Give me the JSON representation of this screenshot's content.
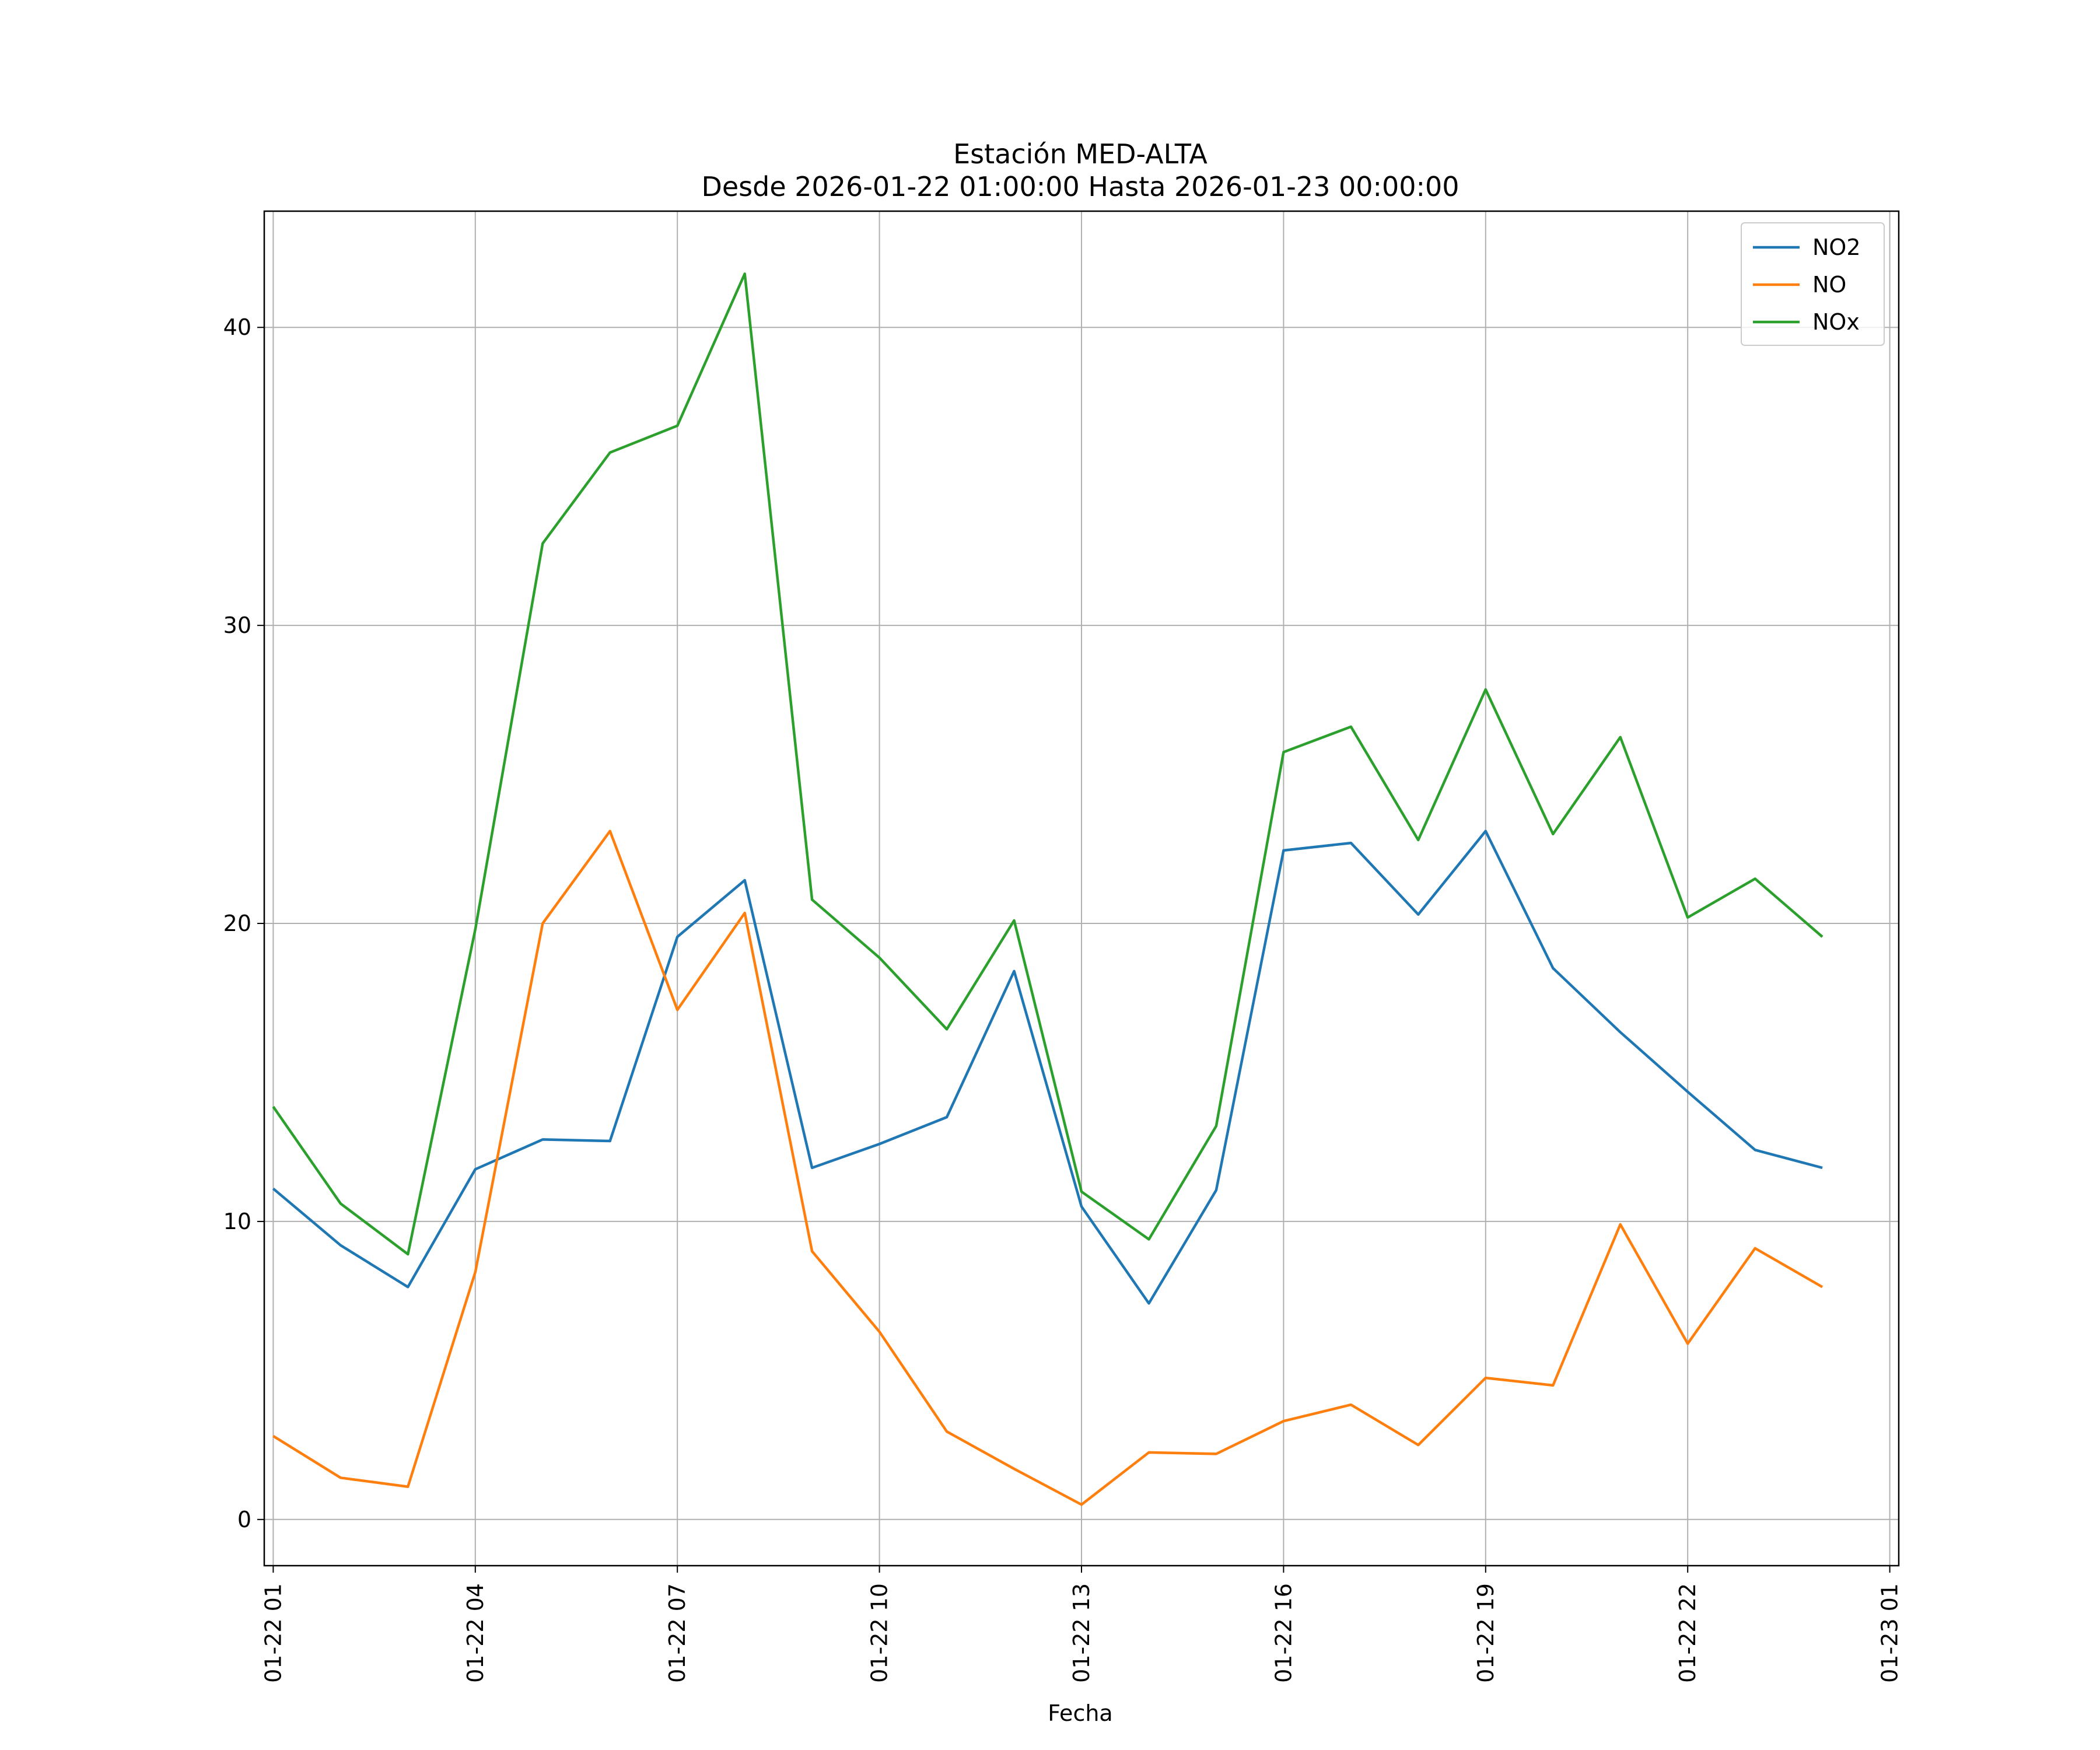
{
  "chart_data": {
    "type": "line",
    "title": "Estación MED-ALTA",
    "subtitle": "Desde 2026-01-22 01:00:00 Hasta 2026-01-23 00:00:00",
    "xlabel": "Fecha",
    "ylabel": "",
    "x": [
      "2026-01-22 01:00",
      "2026-01-22 02:00",
      "2026-01-22 03:00",
      "2026-01-22 04:00",
      "2026-01-22 05:00",
      "2026-01-22 06:00",
      "2026-01-22 07:00",
      "2026-01-22 08:00",
      "2026-01-22 09:00",
      "2026-01-22 10:00",
      "2026-01-22 11:00",
      "2026-01-22 12:00",
      "2026-01-22 13:00",
      "2026-01-22 14:00",
      "2026-01-22 15:00",
      "2026-01-22 16:00",
      "2026-01-22 17:00",
      "2026-01-22 18:00",
      "2026-01-22 19:00",
      "2026-01-22 20:00",
      "2026-01-22 21:00",
      "2026-01-22 22:00",
      "2026-01-22 23:00",
      "2026-01-23 00:00"
    ],
    "x_ticks": [
      "01-22 01",
      "01-22 04",
      "01-22 07",
      "01-22 10",
      "01-22 13",
      "01-22 16",
      "01-22 19",
      "01-22 22",
      "01-23 01"
    ],
    "y_ticks": [
      0,
      10,
      20,
      30,
      40
    ],
    "xlim": [
      "2026-01-22 00:52",
      "2026-01-23 01:08"
    ],
    "ylim": [
      -1.55,
      43.9
    ],
    "grid": true,
    "legend_position": "top-right",
    "series": [
      {
        "name": "NO2",
        "color": "#1f77b4",
        "values": [
          11.1,
          9.2,
          7.8,
          11.75,
          12.75,
          12.7,
          19.55,
          21.45,
          11.8,
          12.6,
          13.5,
          18.4,
          10.5,
          7.25,
          11.05,
          22.45,
          22.7,
          20.3,
          23.1,
          18.5,
          16.35,
          14.35,
          12.4,
          11.8
        ]
      },
      {
        "name": "NO",
        "color": "#ff7f0e",
        "values": [
          2.8,
          1.4,
          1.1,
          8.3,
          20.0,
          23.1,
          17.1,
          20.35,
          9.0,
          6.3,
          2.95,
          1.7,
          0.5,
          2.25,
          2.2,
          3.3,
          3.85,
          2.5,
          4.75,
          4.5,
          9.9,
          5.9,
          9.1,
          7.8
        ]
      },
      {
        "name": "NOx",
        "color": "#2ca02c",
        "values": [
          13.85,
          10.6,
          8.9,
          19.8,
          32.75,
          35.8,
          36.7,
          41.8,
          20.8,
          18.85,
          16.45,
          20.1,
          11.0,
          9.4,
          13.2,
          25.75,
          26.6,
          22.8,
          27.85,
          23.0,
          26.25,
          20.2,
          21.5,
          19.55
        ]
      }
    ]
  }
}
